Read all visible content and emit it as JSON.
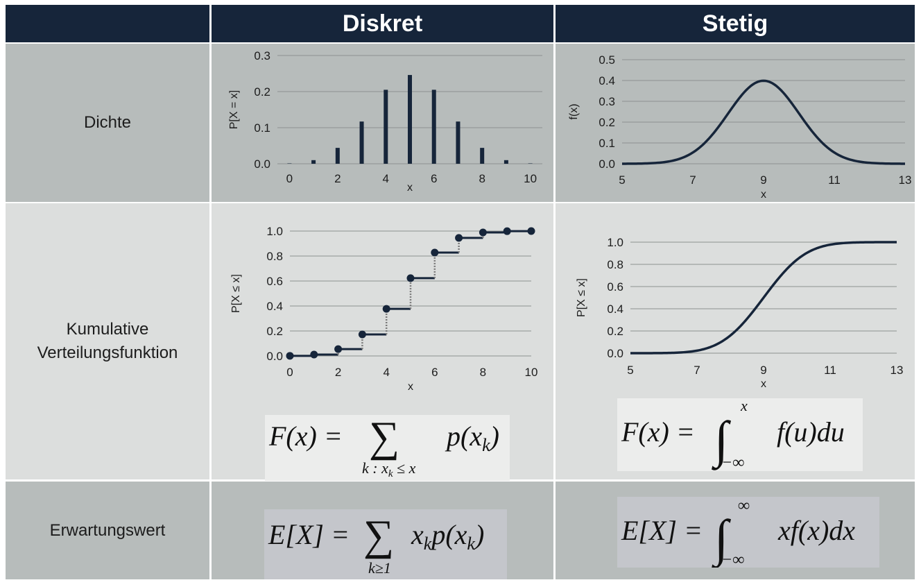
{
  "header": {
    "col_discrete": "Diskret",
    "col_continuous": "Stetig"
  },
  "rows": {
    "density": "Dichte",
    "cdf_line1": "Kumulative",
    "cdf_line2": "Verteilungsfunktion",
    "expectation": "Erwartungswert"
  },
  "formulas": {
    "cdf_discrete": {
      "lhs": "F(x) =",
      "sum": "∑",
      "sub": "k : x",
      "sub_k": "k",
      "sub_rest": " ≤ x",
      "rhs": "p(x",
      "rhs_k": "k",
      "rhs_close": ")"
    },
    "cdf_continuous": {
      "lhs": "F(x) =",
      "integral": "∫",
      "upper": "x",
      "lower": "−∞",
      "rhs": "f(u)du"
    },
    "exp_discrete": {
      "lhs": "E[X] =",
      "sum": "∑",
      "sub": "k≥1",
      "rhs_x": "x",
      "rhs_k": "k",
      "rhs_p": "p(x",
      "rhs_k2": "k",
      "rhs_close": ")"
    },
    "exp_continuous": {
      "lhs": "E[X] =",
      "integral": "∫",
      "upper": "∞",
      "lower": "−∞",
      "rhs": "xf(x)dx"
    }
  },
  "colors": {
    "header_bg": "#16253a",
    "curve": "#16253a",
    "grid": "#8d9190",
    "dotted": "#7a7a7a"
  },
  "chart_data": [
    {
      "type": "bar",
      "xlabel": "x",
      "ylabel": "P[X = x]",
      "x": [
        0,
        1,
        2,
        3,
        4,
        5,
        6,
        7,
        8,
        9,
        10
      ],
      "values": [
        0.001,
        0.01,
        0.044,
        0.117,
        0.205,
        0.246,
        0.205,
        0.117,
        0.044,
        0.01,
        0.001
      ],
      "xlim": [
        -0.5,
        10.5
      ],
      "ylim": [
        0,
        0.3
      ],
      "xticks": [
        0,
        2,
        4,
        6,
        8,
        10
      ],
      "yticks": [
        "0.0",
        "0.1",
        "0.2",
        "0.3"
      ],
      "grid": true
    },
    {
      "type": "line",
      "xlabel": "x",
      "ylabel": "f(x)",
      "distribution": "normal",
      "mean": 9,
      "sd": 1,
      "xlim": [
        5,
        13
      ],
      "ylim": [
        0,
        0.5
      ],
      "xticks": [
        5,
        7,
        9,
        11,
        13
      ],
      "yticks": [
        "0.0",
        "0.1",
        "0.2",
        "0.3",
        "0.4",
        "0.5"
      ],
      "grid": true
    },
    {
      "type": "step",
      "xlabel": "x",
      "ylabel": "P[X ≤ x]",
      "x": [
        0,
        1,
        2,
        3,
        4,
        5,
        6,
        7,
        8,
        9,
        10
      ],
      "values": [
        0.001,
        0.011,
        0.055,
        0.172,
        0.377,
        0.623,
        0.828,
        0.945,
        0.989,
        0.999,
        1.0
      ],
      "xlim": [
        0,
        10
      ],
      "ylim": [
        0,
        1.0
      ],
      "xticks": [
        0,
        2,
        4,
        6,
        8,
        10
      ],
      "yticks": [
        "0.0",
        "0.2",
        "0.4",
        "0.6",
        "0.8",
        "1.0"
      ],
      "grid": true
    },
    {
      "type": "line",
      "xlabel": "x",
      "ylabel": "P[X ≤ x]",
      "distribution": "normal_cdf",
      "mean": 9,
      "sd": 1,
      "xlim": [
        5,
        13
      ],
      "ylim": [
        0,
        1.0
      ],
      "xticks": [
        5,
        7,
        9,
        11,
        13
      ],
      "yticks": [
        "0.0",
        "0.2",
        "0.4",
        "0.6",
        "0.8",
        "1.0"
      ],
      "grid": true
    }
  ]
}
